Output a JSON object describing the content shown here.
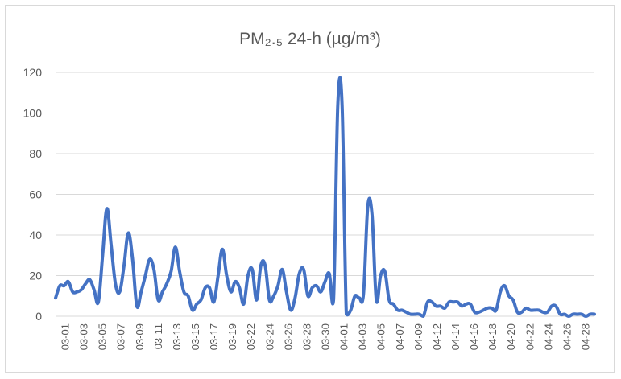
{
  "chart_data": {
    "type": "line",
    "title": "PM₂.₅ 24-h (µg/m³)",
    "xlabel": "",
    "ylabel": "",
    "ylim": [
      0,
      120
    ],
    "yticks": [
      0,
      20,
      40,
      60,
      80,
      100,
      120
    ],
    "grid": true,
    "x_tick_labels": [
      "03-01",
      "03-03",
      "03-05",
      "03-07",
      "03-09",
      "03-11",
      "03-13",
      "03-15",
      "03-17",
      "03-19",
      "03-22",
      "03-24",
      "03-26",
      "03-28",
      "03-30",
      "04-01",
      "04-03",
      "04-05",
      "04-07",
      "04-09",
      "04-12",
      "04-14",
      "04-16",
      "04-18",
      "04-20",
      "04-22",
      "04-24",
      "04-26",
      "04-28"
    ],
    "line_color": "#4472c4",
    "series": [
      {
        "values": [
          9,
          15,
          15,
          17,
          12,
          12,
          13,
          16,
          18,
          13,
          7,
          30,
          53,
          35,
          16,
          12,
          25,
          41,
          28,
          5,
          12,
          20,
          28,
          23,
          8,
          12,
          16,
          22,
          34,
          22,
          12,
          10,
          3,
          6,
          8,
          14,
          14,
          7,
          20,
          33,
          20,
          12,
          17,
          14,
          6,
          20,
          23,
          8,
          25,
          25,
          8,
          10,
          15,
          23,
          12,
          3,
          9,
          21,
          23,
          10,
          14,
          15,
          12,
          17,
          21,
          8,
          104,
          104,
          1,
          3,
          10,
          9,
          11,
          54,
          50,
          8,
          20,
          22,
          8,
          6,
          3,
          3,
          2,
          1,
          1,
          1,
          0,
          7,
          7,
          5,
          5,
          4,
          7,
          7,
          7,
          5,
          6,
          6,
          2,
          2,
          3,
          4,
          4,
          3,
          12,
          15,
          10,
          8,
          2,
          2,
          4,
          3,
          3,
          3,
          2,
          2,
          5,
          5,
          1,
          1,
          0,
          1,
          1,
          1,
          0,
          1,
          1
        ]
      }
    ]
  }
}
